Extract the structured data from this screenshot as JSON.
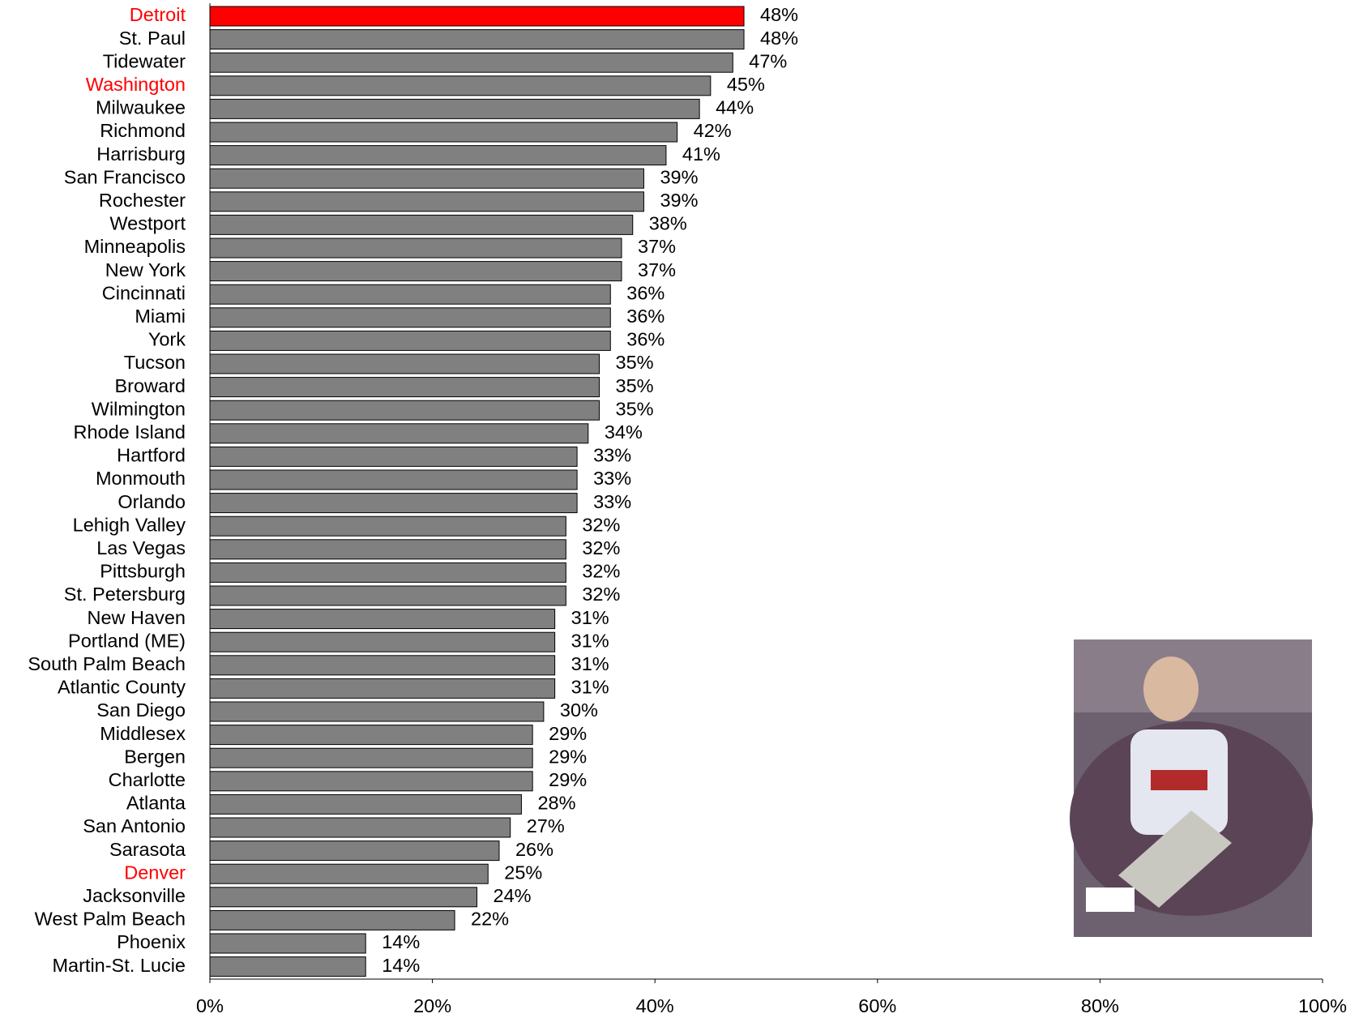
{
  "chart_data": {
    "type": "barh",
    "categories": [
      "Detroit",
      "St. Paul",
      "Tidewater",
      "Washington",
      "Milwaukee",
      "Richmond",
      "Harrisburg",
      "San Francisco",
      "Rochester",
      "Westport",
      "Minneapolis",
      "New York",
      "Cincinnati",
      "Miami",
      "York",
      "Tucson",
      "Broward",
      "Wilmington",
      "Rhode Island",
      "Hartford",
      "Monmouth",
      "Orlando",
      "Lehigh Valley",
      "Las Vegas",
      "Pittsburgh",
      "St. Petersburg",
      "New Haven",
      "Portland (ME)",
      "South Palm Beach",
      "Atlantic County",
      "San Diego",
      "Middlesex",
      "Bergen",
      "Charlotte",
      "Atlanta",
      "San Antonio",
      "Sarasota",
      "Denver",
      "Jacksonville",
      "West Palm Beach",
      "Phoenix",
      "Martin-St. Lucie"
    ],
    "values": [
      48,
      48,
      47,
      45,
      44,
      42,
      41,
      39,
      39,
      38,
      37,
      37,
      36,
      36,
      36,
      35,
      35,
      35,
      34,
      33,
      33,
      33,
      32,
      32,
      32,
      32,
      31,
      31,
      31,
      31,
      30,
      29,
      29,
      29,
      28,
      27,
      26,
      25,
      24,
      22,
      14,
      14
    ],
    "value_labels": [
      "48%",
      "48%",
      "47%",
      "45%",
      "44%",
      "42%",
      "41%",
      "39%",
      "39%",
      "38%",
      "37%",
      "37%",
      "36%",
      "36%",
      "36%",
      "35%",
      "35%",
      "35%",
      "34%",
      "33%",
      "33%",
      "33%",
      "32%",
      "32%",
      "32%",
      "32%",
      "31%",
      "31%",
      "31%",
      "31%",
      "30%",
      "29%",
      "29%",
      "29%",
      "28%",
      "27%",
      "26%",
      "25%",
      "24%",
      "22%",
      "14%",
      "14%"
    ],
    "colors": [
      "#ff0000",
      "#808080",
      "#808080",
      "#808080",
      "#808080",
      "#808080",
      "#808080",
      "#808080",
      "#808080",
      "#808080",
      "#808080",
      "#808080",
      "#808080",
      "#808080",
      "#808080",
      "#808080",
      "#808080",
      "#808080",
      "#808080",
      "#808080",
      "#808080",
      "#808080",
      "#808080",
      "#808080",
      "#808080",
      "#808080",
      "#808080",
      "#808080",
      "#808080",
      "#808080",
      "#808080",
      "#808080",
      "#808080",
      "#808080",
      "#808080",
      "#808080",
      "#808080",
      "#808080",
      "#808080",
      "#808080",
      "#808080",
      "#808080"
    ],
    "label_colors": [
      "#ff0000",
      "#000000",
      "#000000",
      "#ff0000",
      "#000000",
      "#000000",
      "#000000",
      "#000000",
      "#000000",
      "#000000",
      "#000000",
      "#000000",
      "#000000",
      "#000000",
      "#000000",
      "#000000",
      "#000000",
      "#000000",
      "#000000",
      "#000000",
      "#000000",
      "#000000",
      "#000000",
      "#000000",
      "#000000",
      "#000000",
      "#000000",
      "#000000",
      "#000000",
      "#000000",
      "#000000",
      "#000000",
      "#000000",
      "#000000",
      "#000000",
      "#000000",
      "#000000",
      "#ff0000",
      "#000000",
      "#000000",
      "#000000",
      "#000000"
    ],
    "xlim": [
      0,
      100
    ],
    "xticks": [
      {
        "value": 0,
        "label": "0%"
      },
      {
        "value": 20,
        "label": "20%"
      },
      {
        "value": 40,
        "label": "40%"
      },
      {
        "value": 60,
        "label": "60%"
      },
      {
        "value": 80,
        "label": "80%"
      },
      {
        "value": 100,
        "label": "100%"
      }
    ]
  }
}
